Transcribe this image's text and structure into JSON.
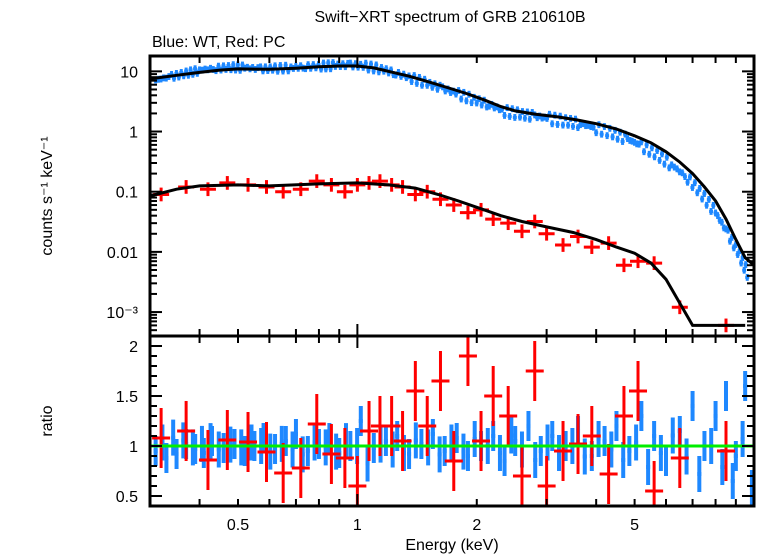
{
  "chart_data": [
    {
      "panel": "spectrum",
      "type": "scatter",
      "title": "Swift−XRT spectrum of GRB 210610B",
      "subtitle": "Blue: WT, Red: PC",
      "xlabel": "Energy (keV)",
      "ylabel": "counts s⁻¹ keV⁻¹",
      "xscale": "log",
      "yscale": "log",
      "xlim": [
        0.3,
        10
      ],
      "ylim": [
        0.0004,
        18
      ],
      "xticks": [
        {
          "v": 0.5,
          "label": "0.5"
        },
        {
          "v": 1,
          "label": "1"
        },
        {
          "v": 2,
          "label": "2"
        },
        {
          "v": 5,
          "label": "5"
        }
      ],
      "yticks": [
        {
          "v": 10,
          "label": "10"
        },
        {
          "v": 1,
          "label": "1"
        },
        {
          "v": 0.1,
          "label": "0.1"
        },
        {
          "v": 0.01,
          "label": "0.01"
        },
        {
          "v": 0.001,
          "label": "10⁻³"
        }
      ],
      "series": [
        {
          "name": "WT data",
          "color": "#1e88ff",
          "x": [
            0.31,
            0.34,
            0.37,
            0.4,
            0.44,
            0.48,
            0.52,
            0.57,
            0.62,
            0.68,
            0.74,
            0.81,
            0.88,
            0.96,
            1.05,
            1.15,
            1.25,
            1.37,
            1.5,
            1.64,
            1.8,
            1.97,
            2.15,
            2.35,
            2.57,
            2.8,
            3.05,
            3.35,
            3.65,
            4.0,
            4.4,
            4.8,
            5.2,
            5.7,
            6.2,
            6.8,
            7.4,
            8.0,
            8.6,
            9.2,
            9.7
          ],
          "y": [
            7.2,
            8.2,
            9.3,
            10.5,
            11.2,
            11.8,
            11.5,
            11.0,
            11.2,
            11.5,
            12.0,
            12.3,
            12.6,
            12.8,
            12.2,
            11.0,
            9.3,
            7.8,
            6.3,
            5.2,
            4.2,
            3.4,
            2.8,
            2.2,
            1.95,
            1.8,
            1.65,
            1.5,
            1.35,
            1.15,
            0.95,
            0.75,
            0.58,
            0.42,
            0.28,
            0.17,
            0.09,
            0.045,
            0.02,
            0.009,
            0.004
          ]
        },
        {
          "name": "PC data",
          "color": "#ff0000",
          "x": [
            0.32,
            0.37,
            0.42,
            0.47,
            0.53,
            0.59,
            0.65,
            0.72,
            0.79,
            0.86,
            0.93,
            1.0,
            1.07,
            1.14,
            1.22,
            1.3,
            1.4,
            1.5,
            1.62,
            1.75,
            1.9,
            2.05,
            2.2,
            2.4,
            2.6,
            2.8,
            3.0,
            3.3,
            3.6,
            3.9,
            4.3,
            4.7,
            5.1,
            5.6,
            6.5,
            8.5
          ],
          "y": [
            0.09,
            0.12,
            0.11,
            0.14,
            0.13,
            0.12,
            0.1,
            0.11,
            0.15,
            0.13,
            0.1,
            0.13,
            0.14,
            0.15,
            0.13,
            0.12,
            0.09,
            0.1,
            0.075,
            0.06,
            0.045,
            0.05,
            0.035,
            0.03,
            0.022,
            0.032,
            0.02,
            0.013,
            0.018,
            0.012,
            0.014,
            0.006,
            0.007,
            0.0065,
            0.0012,
            0.0006
          ]
        },
        {
          "name": "WT model",
          "color": "#000000",
          "x": [
            0.3,
            0.35,
            0.4,
            0.45,
            0.5,
            0.6,
            0.7,
            0.8,
            0.9,
            1.0,
            1.1,
            1.2,
            1.35,
            1.5,
            1.7,
            1.9,
            2.1,
            2.3,
            2.5,
            2.8,
            3.2,
            3.6,
            4.0,
            4.5,
            5.0,
            5.5,
            6.0,
            6.5,
            7.0,
            7.5,
            8.0,
            8.5,
            9.0,
            9.5,
            10.0
          ],
          "y": [
            7.5,
            8.6,
            9.6,
            10.5,
            11.0,
            10.8,
            11.3,
            11.9,
            12.3,
            12.3,
            11.4,
            10.0,
            8.3,
            6.8,
            5.3,
            4.2,
            3.3,
            2.6,
            2.2,
            1.95,
            1.75,
            1.55,
            1.35,
            1.1,
            0.85,
            0.65,
            0.46,
            0.31,
            0.2,
            0.12,
            0.07,
            0.035,
            0.016,
            0.008,
            0.006
          ]
        },
        {
          "name": "PC model",
          "color": "#000000",
          "x": [
            0.3,
            0.35,
            0.4,
            0.5,
            0.6,
            0.8,
            1.0,
            1.2,
            1.4,
            1.6,
            1.8,
            2.0,
            2.3,
            2.6,
            3.0,
            3.5,
            4.0,
            4.5,
            5.0,
            5.5,
            6.0,
            7.0,
            9.5
          ],
          "y": [
            0.085,
            0.11,
            0.125,
            0.13,
            0.125,
            0.135,
            0.14,
            0.13,
            0.115,
            0.09,
            0.07,
            0.055,
            0.04,
            0.032,
            0.026,
            0.021,
            0.016,
            0.012,
            0.0095,
            0.0065,
            0.0035,
            0.0006,
            0.0006
          ]
        }
      ]
    },
    {
      "panel": "ratio",
      "type": "scatter",
      "xlabel": "Energy (keV)",
      "ylabel": "ratio",
      "xscale": "log",
      "xlim": [
        0.3,
        10
      ],
      "ylim": [
        0.4,
        2.1
      ],
      "xticks": [
        {
          "v": 0.5,
          "label": "0.5"
        },
        {
          "v": 1,
          "label": "1"
        },
        {
          "v": 2,
          "label": "2"
        },
        {
          "v": 5,
          "label": "5"
        }
      ],
      "yticks": [
        {
          "v": 2,
          "label": "2"
        },
        {
          "v": 1.5,
          "label": "1.5"
        },
        {
          "v": 1,
          "label": "1"
        },
        {
          "v": 0.5,
          "label": "0.5"
        }
      ],
      "reference_line": {
        "y": 1,
        "color": "#00ee00"
      },
      "series": [
        {
          "name": "WT ratio",
          "color": "#1e88ff",
          "x": [
            0.31,
            0.33,
            0.35,
            0.37,
            0.39,
            0.41,
            0.43,
            0.46,
            0.49,
            0.52,
            0.55,
            0.58,
            0.62,
            0.66,
            0.7,
            0.75,
            0.8,
            0.85,
            0.9,
            0.96,
            1.02,
            1.1,
            1.18,
            1.26,
            1.35,
            1.45,
            1.55,
            1.66,
            1.78,
            1.9,
            2.05,
            2.2,
            2.35,
            2.5,
            2.7,
            2.9,
            3.1,
            3.35,
            3.6,
            3.9,
            4.2,
            4.5,
            4.85,
            5.2,
            5.6,
            6.0,
            6.5,
            7.0,
            7.5,
            8.0,
            8.5,
            9.0,
            9.5
          ],
          "y": [
            0.95,
            0.88,
            0.92,
            1.02,
            0.97,
            0.93,
            1.05,
            0.98,
            1.02,
            0.95,
            1.0,
            1.08,
            0.97,
            1.05,
            1.12,
            0.95,
            1.02,
            1.08,
            0.93,
            1.0,
            1.25,
            0.98,
            1.05,
            1.1,
            0.92,
            1.02,
            1.12,
            0.95,
            1.08,
            0.9,
            1.0,
            1.1,
            0.85,
            1.05,
            1.2,
            0.95,
            1.1,
            1.0,
            1.15,
            0.9,
            1.05,
            1.2,
            0.95,
            1.3,
            1.1,
            0.85,
            1.15,
            1.4,
            1.0,
            1.3,
            1.5,
            0.9,
            1.6
          ]
        },
        {
          "name": "PC ratio",
          "color": "#ff0000",
          "x": [
            0.32,
            0.37,
            0.42,
            0.47,
            0.53,
            0.59,
            0.65,
            0.72,
            0.79,
            0.86,
            0.93,
            1.0,
            1.07,
            1.14,
            1.22,
            1.3,
            1.4,
            1.5,
            1.62,
            1.75,
            1.9,
            2.05,
            2.2,
            2.4,
            2.6,
            2.8,
            3.0,
            3.3,
            3.6,
            3.9,
            4.3,
            4.7,
            5.1,
            5.6,
            6.5,
            8.5
          ],
          "y": [
            1.08,
            1.15,
            0.86,
            1.06,
            1.04,
            0.94,
            0.73,
            0.78,
            1.22,
            0.92,
            0.88,
            0.6,
            1.15,
            1.2,
            1.2,
            1.05,
            1.55,
            1.2,
            1.65,
            0.85,
            1.9,
            1.05,
            1.5,
            1.3,
            0.7,
            1.75,
            0.6,
            0.95,
            1.02,
            1.1,
            0.72,
            1.3,
            1.55,
            0.55,
            0.88,
            0.95
          ]
        }
      ]
    }
  ]
}
